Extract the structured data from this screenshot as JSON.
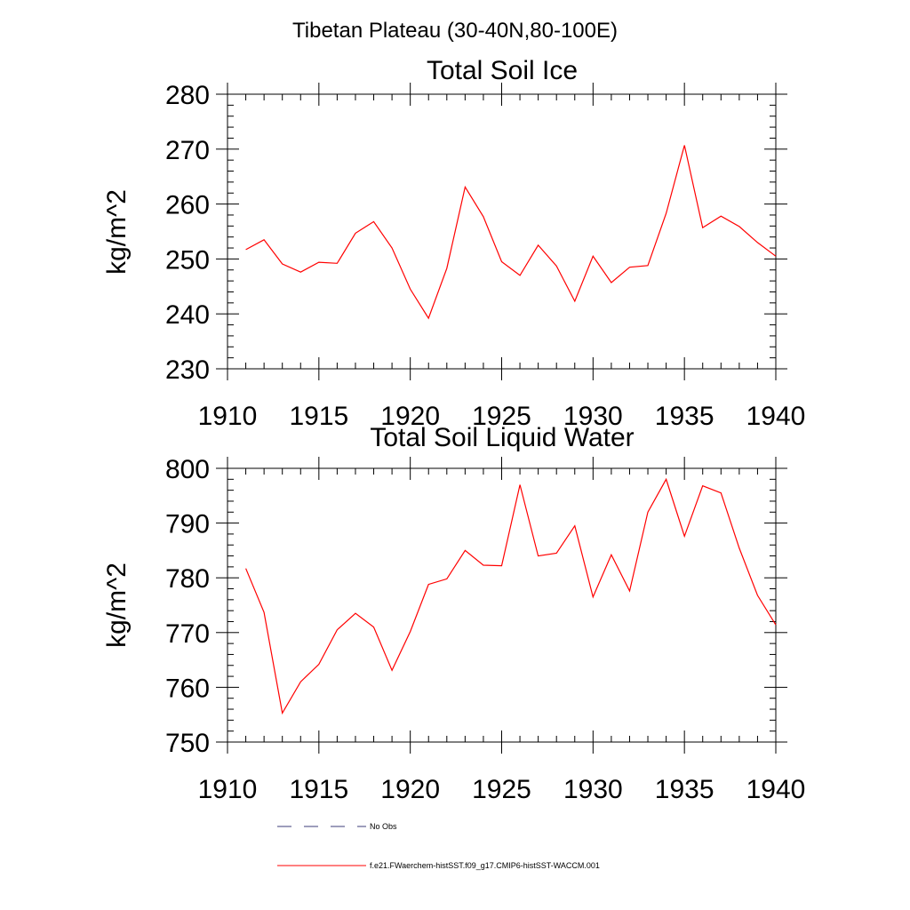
{
  "figure": {
    "title": "Tibetan Plateau (30-40N,80-100E)"
  },
  "chart_data": [
    {
      "type": "line",
      "title": "Total Soil Ice",
      "xlabel": "",
      "ylabel": "kg/m^2",
      "xlim": [
        1910,
        1940
      ],
      "ylim": [
        230,
        280
      ],
      "x_ticks": [
        1910,
        1915,
        1920,
        1925,
        1930,
        1935,
        1940
      ],
      "y_ticks": [
        230,
        240,
        250,
        260,
        270,
        280
      ],
      "grid": false,
      "series": [
        {
          "name": "f.e21.FWaerchem-histSST.f09_g17.CMIP6-histSST-WACCM.001",
          "color": "#ff0000",
          "x": [
            1911,
            1912,
            1913,
            1914,
            1915,
            1916,
            1917,
            1918,
            1919,
            1920,
            1921,
            1922,
            1923,
            1924,
            1925,
            1926,
            1927,
            1928,
            1929,
            1930,
            1931,
            1932,
            1933,
            1934,
            1935,
            1936,
            1937,
            1938,
            1939,
            1940
          ],
          "values": [
            251.7,
            253.5,
            249.1,
            247.6,
            249.4,
            249.2,
            254.7,
            256.8,
            252.0,
            244.5,
            239.2,
            248.3,
            263.1,
            257.7,
            249.5,
            247.0,
            252.5,
            248.7,
            242.3,
            250.5,
            245.7,
            248.5,
            248.8,
            258.3,
            270.7,
            255.7,
            257.8,
            255.9,
            253.0,
            250.5
          ]
        }
      ]
    },
    {
      "type": "line",
      "title": "Total Soil Liquid Water",
      "xlabel": "",
      "ylabel": "kg/m^2",
      "xlim": [
        1910,
        1940
      ],
      "ylim": [
        750,
        800
      ],
      "x_ticks": [
        1910,
        1915,
        1920,
        1925,
        1930,
        1935,
        1940
      ],
      "y_ticks": [
        750,
        760,
        770,
        780,
        790,
        800
      ],
      "grid": false,
      "series": [
        {
          "name": "f.e21.FWaerchem-histSST.f09_g17.CMIP6-histSST-WACCM.001",
          "color": "#ff0000",
          "x": [
            1911,
            1912,
            1913,
            1914,
            1915,
            1916,
            1917,
            1918,
            1919,
            1920,
            1921,
            1922,
            1923,
            1924,
            1925,
            1926,
            1927,
            1928,
            1929,
            1930,
            1931,
            1932,
            1933,
            1934,
            1935,
            1936,
            1937,
            1938,
            1939,
            1940
          ],
          "values": [
            781.7,
            773.7,
            755.3,
            761.0,
            764.2,
            770.5,
            773.5,
            771.0,
            763.1,
            770.2,
            778.8,
            779.8,
            785.0,
            782.3,
            782.2,
            797.0,
            784.0,
            784.5,
            789.5,
            776.5,
            784.2,
            777.6,
            792.0,
            798.0,
            787.6,
            796.8,
            795.5,
            785.4,
            776.8,
            771.4
          ]
        }
      ]
    }
  ],
  "legend": {
    "position": "bottom",
    "entries": [
      {
        "label": "No Obs",
        "color": "#3d3d7a",
        "style": "dashed"
      },
      {
        "label": "f.e21.FWaerchem-histSST.f09_g17.CMIP6-histSST-WACCM.001",
        "color": "#ff0000",
        "style": "solid"
      }
    ]
  }
}
